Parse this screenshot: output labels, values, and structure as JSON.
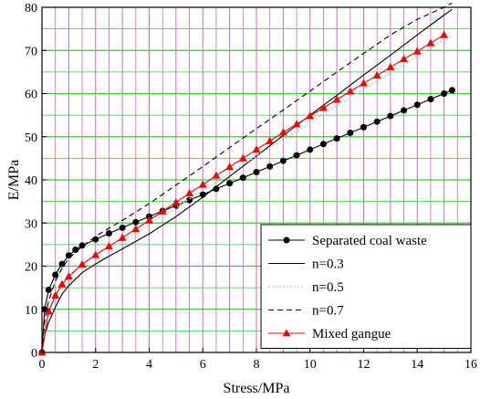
{
  "chart_data": {
    "type": "line",
    "title": "",
    "xlabel": "Stress/MPa",
    "ylabel": "E/MPa",
    "xlim": [
      0,
      16
    ],
    "ylim": [
      0,
      80
    ],
    "xticks": [
      "0",
      "2",
      "4",
      "6",
      "8",
      "10",
      "12",
      "14",
      "16"
    ],
    "yticks": [
      "0",
      "10",
      "20",
      "30",
      "40",
      "50",
      "60",
      "70",
      "80"
    ],
    "grid": true,
    "grid_colors": {
      "vertical": "#cc66cc",
      "horizontal": "#33cc33"
    },
    "legend_position": "bottom-right",
    "series": [
      {
        "name": "Separated coal waste",
        "color": "#000000",
        "dash": "solid",
        "marker": "circle",
        "x": [
          0,
          0.1,
          0.25,
          0.5,
          0.75,
          1.0,
          1.25,
          1.5,
          2.0,
          2.5,
          3.0,
          3.5,
          4.0,
          4.5,
          5.0,
          5.5,
          6.0,
          6.5,
          7.0,
          7.5,
          8.0,
          8.5,
          9.0,
          9.5,
          10.0,
          10.5,
          11.0,
          11.5,
          12.0,
          12.5,
          13.0,
          13.5,
          14.0,
          14.5,
          15.0,
          15.3
        ],
        "y": [
          0,
          10.0,
          14.5,
          18.0,
          20.5,
          22.5,
          23.8,
          24.8,
          26.2,
          27.6,
          28.9,
          30.2,
          31.5,
          32.8,
          34.0,
          35.3,
          36.6,
          37.9,
          39.2,
          40.5,
          41.8,
          43.1,
          44.4,
          45.7,
          47.0,
          48.3,
          49.6,
          50.9,
          52.2,
          53.5,
          54.8,
          56.1,
          57.4,
          58.7,
          60.0,
          60.8
        ]
      },
      {
        "name": "n=0.3",
        "color": "#000000",
        "dash": "solid",
        "marker": "none",
        "x": [
          0,
          0.1,
          0.25,
          0.5,
          0.75,
          1.0,
          1.5,
          2.0,
          2.5,
          3.0,
          4.0,
          5.0,
          6.0,
          7.0,
          8.0,
          9.0,
          10.0,
          11.0,
          12.0,
          13.0,
          14.0,
          15.0,
          15.3
        ],
        "y": [
          0,
          4.0,
          7.0,
          10.5,
          13.5,
          15.5,
          18.5,
          20.5,
          22.3,
          24.0,
          27.5,
          31.5,
          36.0,
          40.8,
          45.5,
          50.3,
          55.0,
          59.6,
          64.3,
          68.9,
          73.6,
          78.2,
          79.5
        ]
      },
      {
        "name": "n=0.5",
        "color": "#aacccc",
        "dash": "dotted",
        "marker": "none",
        "x": [
          0,
          0.1,
          0.25,
          0.5,
          0.75,
          1.0,
          1.5,
          2.0,
          2.5,
          3.0,
          4.0,
          5.0,
          6.0,
          7.0,
          8.0,
          9.0,
          10.0,
          11.0,
          12.0,
          13.0,
          14.0,
          15.0,
          15.3
        ],
        "y": [
          0,
          5.5,
          9.5,
          13.2,
          15.8,
          17.8,
          20.6,
          22.7,
          24.4,
          26.0,
          29.6,
          33.6,
          37.5,
          41.5,
          45.5,
          49.4,
          53.2,
          57.1,
          61.0,
          64.8,
          68.7,
          72.5,
          73.6
        ]
      },
      {
        "name": "n=0.7",
        "color": "#000000",
        "dash": "dashed",
        "marker": "none",
        "x": [
          0,
          0.1,
          0.25,
          0.5,
          0.75,
          1.0,
          1.5,
          2.0,
          2.5,
          3.0,
          4.0,
          5.0,
          6.0,
          7.0,
          8.0,
          9.0,
          10.0,
          11.0,
          12.0,
          13.0,
          14.0,
          15.0,
          15.3
        ],
        "y": [
          0,
          7.0,
          12.0,
          16.5,
          19.5,
          21.8,
          24.6,
          26.9,
          28.8,
          30.6,
          34.5,
          38.8,
          43.1,
          47.5,
          51.9,
          56.2,
          60.6,
          65.0,
          69.3,
          73.6,
          77.2,
          80.0,
          81.0
        ]
      },
      {
        "name": "Mixed gangue",
        "color": "#ee0000",
        "dash": "solid",
        "marker": "triangle",
        "x": [
          0,
          0.25,
          0.5,
          0.75,
          1.0,
          1.5,
          2.0,
          2.5,
          3.0,
          3.5,
          4.0,
          4.5,
          5.0,
          5.5,
          6.0,
          6.5,
          7.0,
          7.5,
          8.0,
          8.5,
          9.0,
          9.5,
          10.0,
          10.5,
          11.0,
          11.5,
          12.0,
          12.5,
          13.0,
          13.5,
          14.0,
          14.5,
          15.0
        ],
        "y": [
          0,
          9.5,
          13.2,
          15.8,
          17.6,
          20.4,
          22.6,
          24.6,
          26.6,
          28.6,
          30.6,
          32.7,
          34.8,
          36.9,
          38.9,
          41.0,
          43.0,
          45.0,
          47.0,
          49.0,
          51.0,
          52.9,
          54.8,
          56.7,
          58.6,
          60.5,
          62.4,
          64.2,
          66.1,
          68.0,
          69.8,
          71.7,
          73.6
        ]
      }
    ]
  }
}
